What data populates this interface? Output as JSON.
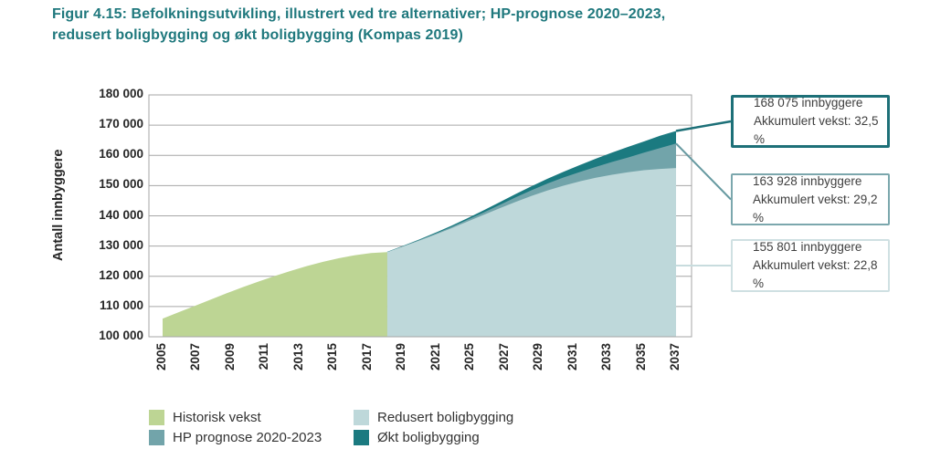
{
  "title": {
    "line1": "Figur 4.15: Befolkningsutvikling, illustrert ved tre alternativer; HP-prognose 2020–2023,",
    "line2": "redusert boligbygging og økt boligbygging (Kompas 2019)"
  },
  "colors": {
    "title_text": "#1f787d",
    "grid": "#a6a6a6",
    "axis_text": "#262626",
    "callout_text": "#3f3f3f"
  },
  "chart_data": {
    "type": "area",
    "title": "Befolkningsutvikling, illustrert ved tre alternativer",
    "ylabel": "Antall innbyggere",
    "xlabel": "",
    "ylim": [
      100000,
      180000
    ],
    "y_tick_step": 10000,
    "y_tick_labels": [
      "100 000",
      "110 000",
      "120 000",
      "130 000",
      "140 000",
      "150 000",
      "160 000",
      "170 000",
      "180 000"
    ],
    "x_range": [
      2005,
      2037
    ],
    "x_tick_labels": [
      "2005",
      "2007",
      "2009",
      "2011",
      "2013",
      "2015",
      "2017",
      "2019",
      "2021",
      "2025",
      "2027",
      "2029",
      "2031",
      "2033",
      "2035",
      "2037"
    ],
    "grid": "horizontal",
    "legend_position": "bottom",
    "series": [
      {
        "id": "okt-boligbygging",
        "name": "Økt boligbygging",
        "color": "#1b7a80",
        "years": [
          2019,
          2020,
          2021,
          2022,
          2023,
          2024,
          2025,
          2026,
          2027,
          2028,
          2029,
          2030,
          2031,
          2032,
          2033,
          2034,
          2035,
          2036,
          2037
        ],
        "values": [
          128100,
          130100,
          132200,
          134400,
          136700,
          139200,
          141800,
          144500,
          147200,
          149800,
          152300,
          154600,
          156800,
          158900,
          160900,
          162800,
          164600,
          166500,
          168075
        ]
      },
      {
        "id": "hp-prognose-2020-2023",
        "name": "HP prognose 2020-2023",
        "color": "#72a4aa",
        "years": [
          2019,
          2020,
          2021,
          2022,
          2023,
          2024,
          2025,
          2026,
          2027,
          2028,
          2029,
          2030,
          2031,
          2032,
          2033,
          2034,
          2035,
          2036,
          2037
        ],
        "values": [
          128000,
          130000,
          132000,
          134100,
          136300,
          138700,
          141100,
          143600,
          146100,
          148500,
          150700,
          152700,
          154500,
          156200,
          157800,
          159300,
          160900,
          162400,
          163928
        ]
      },
      {
        "id": "redusert-boligbygging",
        "name": "Redusert boligbygging",
        "color": "#bed8da",
        "years": [
          2019,
          2020,
          2021,
          2022,
          2023,
          2024,
          2025,
          2026,
          2027,
          2028,
          2029,
          2030,
          2031,
          2032,
          2033,
          2034,
          2035,
          2036,
          2037
        ],
        "values": [
          128000,
          129900,
          131800,
          133800,
          135900,
          138100,
          140300,
          142500,
          144600,
          146600,
          148400,
          150000,
          151400,
          152600,
          153600,
          154400,
          155100,
          155500,
          155801
        ]
      },
      {
        "id": "historisk-vekst",
        "name": "Historisk vekst",
        "color": "#bdd594",
        "years": [
          2005,
          2006,
          2007,
          2008,
          2009,
          2010,
          2011,
          2012,
          2013,
          2014,
          2015,
          2016,
          2017,
          2018,
          2019
        ],
        "values": [
          106000,
          108100,
          110200,
          112300,
          114400,
          116400,
          118300,
          120100,
          121800,
          123400,
          124800,
          126000,
          127000,
          127700,
          128000
        ]
      }
    ],
    "end_values": {
      "okt_boligbygging_2037": 168075,
      "hp_prognose_2037": 163928,
      "redusert_boligbygging_2037": 155801
    }
  },
  "legend": {
    "items": [
      {
        "label": "Historisk vekst",
        "color": "#bdd594"
      },
      {
        "label": "Redusert boligbygging",
        "color": "#bed8da"
      },
      {
        "label": "HP prognose 2020-2023",
        "color": "#72a4aa"
      },
      {
        "label": "Økt boligbygging",
        "color": "#1b7a80"
      }
    ]
  },
  "callouts": [
    {
      "line1": "168 075 innbyggere",
      "line2": "Akkumulert vekst: 32,5 %",
      "border_color": "#1d7078",
      "connector_color": "#1d7078",
      "anchor_value": 168075
    },
    {
      "line1": "163 928 innbyggere",
      "line2": "Akkumulert vekst: 29,2 %",
      "border_color": "#7ba7ad",
      "connector_color": "#679aa1",
      "anchor_value": 163928
    },
    {
      "line1": "155 801 innbyggere",
      "line2": "Akkumulert vekst: 22,8 %",
      "border_color": "#cfe0e2",
      "connector_color": "#c8dcde",
      "anchor_value": null
    }
  ]
}
